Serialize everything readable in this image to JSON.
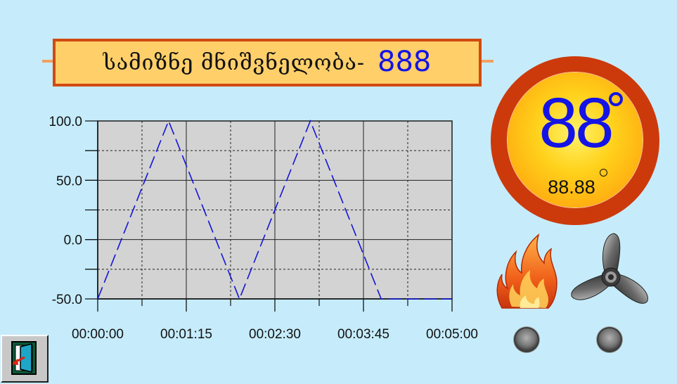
{
  "banner": {
    "label": "სამიზნე მნიშვნელობა-",
    "value": "888"
  },
  "gauge": {
    "big_value": "88",
    "small_value": "88.88",
    "unit_icon": "degree-sign"
  },
  "indicators": [
    {
      "icon": "fire-icon",
      "lamp_state": "off"
    },
    {
      "icon": "fan-icon",
      "lamp_state": "off"
    }
  ],
  "exit_button": {
    "icon": "exit-door-icon"
  },
  "colors": {
    "background": "#c6ecfb",
    "banner_fill": "#ffcf6a",
    "banner_border": "#d14a12",
    "value_blue": "#1414e6",
    "plot_area": "#d3d3d3",
    "series": "#1414d8",
    "gauge_ring": "#cc3a0c"
  },
  "chart_data": {
    "type": "line",
    "title": "",
    "xlabel": "",
    "ylabel": "",
    "ylim": [
      -50,
      100
    ],
    "y_ticks": [
      "100.0",
      "50.0",
      "0.0",
      "-50.0"
    ],
    "x_ticks": [
      "00:00:00",
      "00:01:15",
      "00:02:30",
      "00:03:45",
      "00:05:00"
    ],
    "x_range": [
      "00:00:00",
      "00:05:00"
    ],
    "grid": true,
    "line_style": "dashed",
    "series": [
      {
        "x": [
          "00:00:00",
          "00:01:00",
          "00:02:00",
          "00:03:00",
          "00:04:00",
          "00:05:00"
        ],
        "values": [
          -50,
          100,
          -50,
          100,
          -50,
          -50
        ]
      }
    ]
  }
}
